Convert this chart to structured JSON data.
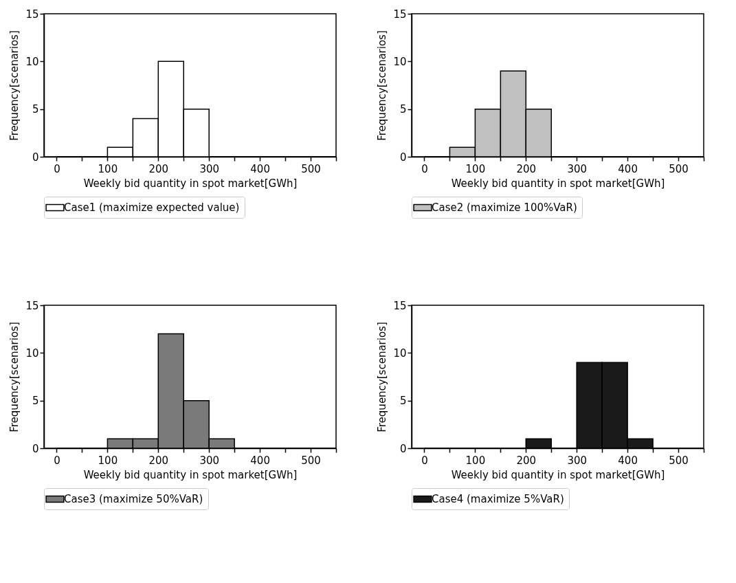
{
  "chart_data": [
    {
      "type": "histogram",
      "xlabel": "Weekly bid quantity in spot market[GWh]",
      "ylabel": "Frequency[scenarios]",
      "bins": [
        0,
        50,
        100,
        150,
        200,
        250,
        300,
        350,
        400,
        450,
        500,
        550
      ],
      "series": [
        {
          "name": "Case1 (maximize expected value)",
          "color": "#ffffff",
          "values": [
            0,
            0,
            1,
            4,
            10,
            5,
            0,
            0,
            0,
            0,
            0
          ]
        }
      ],
      "xlim": [
        -25,
        550
      ],
      "ylim": [
        0,
        15
      ],
      "xticks": [
        0,
        {
          "value": 50,
          "label": null
        },
        100,
        {
          "value": 150,
          "label": null
        },
        200,
        {
          "value": 250,
          "label": null
        },
        300,
        {
          "value": 350,
          "label": null
        },
        400,
        {
          "value": 450,
          "label": null
        },
        500,
        {
          "value": 550,
          "label": null
        }
      ],
      "yticks": [
        0,
        5,
        10,
        15
      ],
      "grid": false,
      "legend": "bottom"
    },
    {
      "type": "histogram",
      "xlabel": "Weekly bid quantity in spot market[GWh]",
      "ylabel": "Frequency[scenarios]",
      "bins": [
        0,
        50,
        100,
        150,
        200,
        250,
        300,
        350,
        400,
        450,
        500,
        550
      ],
      "series": [
        {
          "name": "Case2 (maximize 100%VaR)",
          "color": "#c0c0c0",
          "values": [
            0,
            1,
            5,
            9,
            5,
            0,
            0,
            0,
            0,
            0,
            0
          ]
        }
      ],
      "xlim": [
        -25,
        550
      ],
      "ylim": [
        0,
        15
      ],
      "xticks": [
        0,
        {
          "value": 50,
          "label": null
        },
        100,
        {
          "value": 150,
          "label": null
        },
        200,
        {
          "value": 250,
          "label": null
        },
        300,
        {
          "value": 350,
          "label": null
        },
        400,
        {
          "value": 450,
          "label": null
        },
        500,
        {
          "value": 550,
          "label": null
        }
      ],
      "yticks": [
        0,
        5,
        10,
        15
      ],
      "grid": false,
      "legend": "bottom"
    },
    {
      "type": "histogram",
      "xlabel": "Weekly bid quantity in spot market[GWh]",
      "ylabel": "Frequency[scenarios]",
      "bins": [
        0,
        50,
        100,
        150,
        200,
        250,
        300,
        350,
        400,
        450,
        500,
        550
      ],
      "series": [
        {
          "name": "Case3 (maximize 50%VaR)",
          "color": "#7a7a7a",
          "values": [
            0,
            0,
            1,
            1,
            12,
            5,
            1,
            0,
            0,
            0,
            0
          ]
        }
      ],
      "xlim": [
        -25,
        550
      ],
      "ylim": [
        0,
        15
      ],
      "xticks": [
        0,
        {
          "value": 50,
          "label": null
        },
        100,
        {
          "value": 150,
          "label": null
        },
        200,
        {
          "value": 250,
          "label": null
        },
        300,
        {
          "value": 350,
          "label": null
        },
        400,
        {
          "value": 450,
          "label": null
        },
        500,
        {
          "value": 550,
          "label": null
        }
      ],
      "yticks": [
        0,
        5,
        10,
        15
      ],
      "grid": false,
      "legend": "bottom"
    },
    {
      "type": "histogram",
      "xlabel": "Weekly bid quantity in spot market[GWh]",
      "ylabel": "Frequency[scenarios]",
      "bins": [
        0,
        50,
        100,
        150,
        200,
        250,
        300,
        350,
        400,
        450,
        500,
        550
      ],
      "series": [
        {
          "name": "Case4 (maximize 5%VaR)",
          "color": "#1a1a1a",
          "values": [
            0,
            0,
            0,
            0,
            1,
            0,
            9,
            9,
            1,
            0,
            0
          ]
        }
      ],
      "xlim": [
        -25,
        550
      ],
      "ylim": [
        0,
        15
      ],
      "xticks": [
        0,
        {
          "value": 50,
          "label": null
        },
        100,
        {
          "value": 150,
          "label": null
        },
        200,
        {
          "value": 250,
          "label": null
        },
        300,
        {
          "value": 350,
          "label": null
        },
        400,
        {
          "value": 450,
          "label": null
        },
        500,
        {
          "value": 550,
          "label": null
        }
      ],
      "yticks": [
        0,
        5,
        10,
        15
      ],
      "grid": false,
      "legend": "bottom"
    }
  ]
}
